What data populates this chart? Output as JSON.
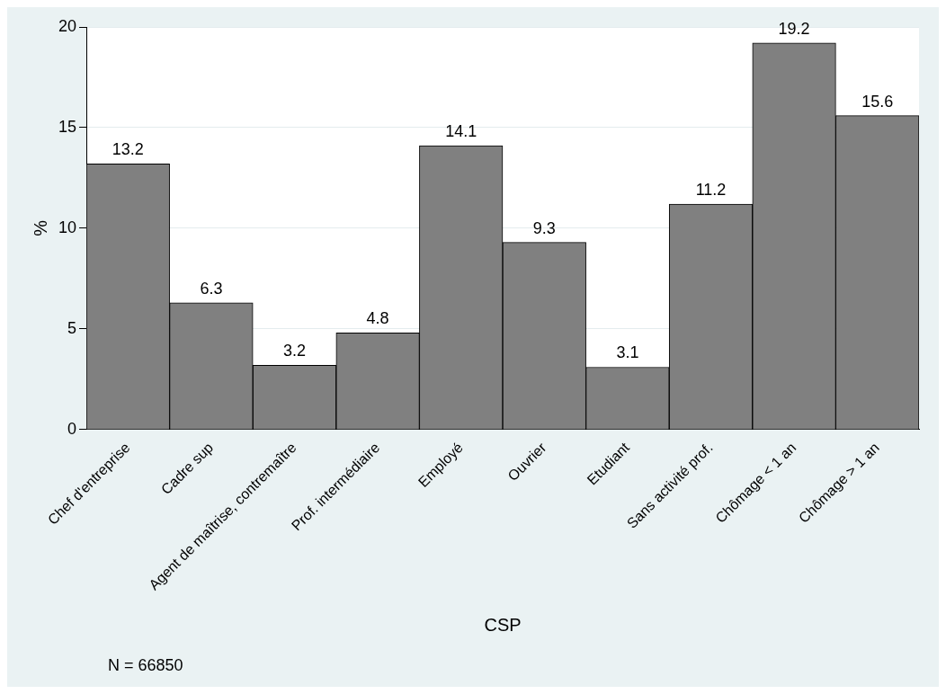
{
  "chart_data": {
    "type": "bar",
    "xlabel": "CSP",
    "ylabel": "%",
    "categories": [
      "Chef d'entreprise",
      "Cadre sup",
      "Agent de maîtrise, contremaître",
      "Prof. intermédiaire",
      "Employé",
      "Ouvrier",
      "Etudiant",
      "Sans activité prof.",
      "Chômage < 1 an",
      "Chômage > 1 an"
    ],
    "values": [
      13.2,
      6.3,
      3.2,
      4.8,
      14.1,
      9.3,
      3.1,
      11.2,
      19.2,
      15.6
    ],
    "color": "#808080",
    "ylim": [
      0,
      20
    ],
    "yticks": [
      0,
      5,
      10,
      15,
      20
    ],
    "grid": "y",
    "legend": false,
    "data_labels": true,
    "annotations": [
      "N = 66850"
    ]
  }
}
